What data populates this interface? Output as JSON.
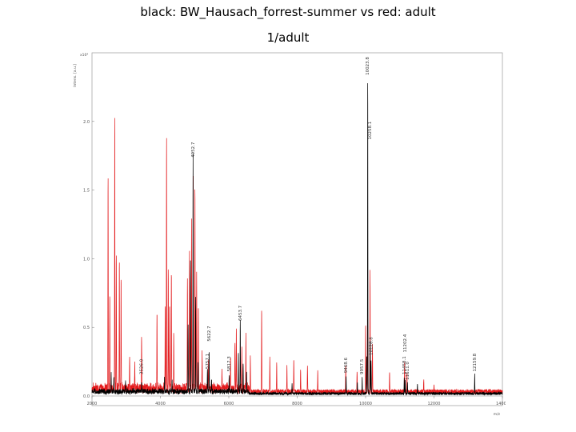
{
  "slide": {
    "title_line1": "black: BW_Hausach_forrest-summer vs  red: adult",
    "title_line2": "1/adult"
  },
  "chart_data": {
    "type": "line",
    "ylabel": "Intens. [a.u.]",
    "y_multiplier": "x10⁴",
    "xlabel": "m/z",
    "xlim": [
      2000,
      14000
    ],
    "ylim": [
      0,
      2.5
    ],
    "x_ticks": [
      2000,
      4000,
      6000,
      8000,
      10000,
      12000,
      14000
    ],
    "x_tick_labels": [
      "2000",
      "4000",
      "6000",
      "8000",
      "10000",
      "12000",
      "14000"
    ],
    "y_ticks": [
      0,
      0.5,
      1.0,
      1.5,
      2.0
    ],
    "y_tick_labels": [
      "0.0",
      "0.5",
      "1.0",
      "1.5",
      "2.0"
    ],
    "series": [
      {
        "color": "#000000",
        "peaks": [
          {
            "mz": 2560,
            "i": 0.13
          },
          {
            "mz": 2640,
            "i": 0.1
          },
          {
            "mz": 2980,
            "i": 0.08
          },
          {
            "mz": 3450,
            "i": 0.07
          },
          {
            "mz": 4120,
            "i": 0.11
          },
          {
            "mz": 4340,
            "i": 0.09
          },
          {
            "mz": 4810,
            "i": 0.5
          },
          {
            "mz": 4880,
            "i": 0.95
          },
          {
            "mz": 4955,
            "i": 1.72
          },
          {
            "mz": 5030,
            "i": 0.7
          },
          {
            "mz": 5100,
            "i": 0.22
          },
          {
            "mz": 5375,
            "i": 0.16
          },
          {
            "mz": 5425,
            "i": 0.3
          },
          {
            "mz": 5495,
            "i": 0.09
          },
          {
            "mz": 6010,
            "i": 0.12
          },
          {
            "mz": 6280,
            "i": 0.28
          },
          {
            "mz": 6335,
            "i": 0.53
          },
          {
            "mz": 6420,
            "i": 0.22
          },
          {
            "mz": 6520,
            "i": 0.14
          },
          {
            "mz": 7850,
            "i": 0.08
          },
          {
            "mz": 9430,
            "i": 0.13
          },
          {
            "mz": 9760,
            "i": 0.08
          },
          {
            "mz": 9900,
            "i": 0.12
          },
          {
            "mz": 10032,
            "i": 0.28
          },
          {
            "mz": 10062,
            "i": 2.3
          },
          {
            "mz": 10134,
            "i": 0.4
          },
          {
            "mz": 10160,
            "i": 0.25
          },
          {
            "mz": 11130,
            "i": 0.12
          },
          {
            "mz": 11160,
            "i": 0.1
          },
          {
            "mz": 11225,
            "i": 0.08
          },
          {
            "mz": 11515,
            "i": 0.07
          },
          {
            "mz": 13190,
            "i": 0.14
          }
        ]
      },
      {
        "color": "#e31a1c",
        "peaks": [
          {
            "mz": 2470,
            "i": 1.57
          },
          {
            "mz": 2520,
            "i": 0.7
          },
          {
            "mz": 2665,
            "i": 2.0
          },
          {
            "mz": 2710,
            "i": 1.0
          },
          {
            "mz": 2800,
            "i": 0.96
          },
          {
            "mz": 2850,
            "i": 0.8
          },
          {
            "mz": 3100,
            "i": 0.25
          },
          {
            "mz": 3250,
            "i": 0.18
          },
          {
            "mz": 3450,
            "i": 0.4
          },
          {
            "mz": 3900,
            "i": 0.55
          },
          {
            "mz": 4140,
            "i": 0.6
          },
          {
            "mz": 4180,
            "i": 1.82
          },
          {
            "mz": 4230,
            "i": 0.9
          },
          {
            "mz": 4270,
            "i": 0.6
          },
          {
            "mz": 4320,
            "i": 0.85
          },
          {
            "mz": 4390,
            "i": 0.4
          },
          {
            "mz": 4790,
            "i": 0.8
          },
          {
            "mz": 4850,
            "i": 1.0
          },
          {
            "mz": 4910,
            "i": 1.2
          },
          {
            "mz": 4960,
            "i": 1.55
          },
          {
            "mz": 5010,
            "i": 1.5
          },
          {
            "mz": 5060,
            "i": 0.85
          },
          {
            "mz": 5110,
            "i": 0.6
          },
          {
            "mz": 5220,
            "i": 0.28
          },
          {
            "mz": 5400,
            "i": 0.2
          },
          {
            "mz": 5800,
            "i": 0.12
          },
          {
            "mz": 6050,
            "i": 0.22
          },
          {
            "mz": 6180,
            "i": 0.35
          },
          {
            "mz": 6220,
            "i": 0.45
          },
          {
            "mz": 6380,
            "i": 0.3
          },
          {
            "mz": 6500,
            "i": 0.38
          },
          {
            "mz": 6630,
            "i": 0.26
          },
          {
            "mz": 6960,
            "i": 0.6
          },
          {
            "mz": 7200,
            "i": 0.25
          },
          {
            "mz": 7400,
            "i": 0.2
          },
          {
            "mz": 7700,
            "i": 0.18
          },
          {
            "mz": 7900,
            "i": 0.24
          },
          {
            "mz": 8100,
            "i": 0.16
          },
          {
            "mz": 8300,
            "i": 0.2
          },
          {
            "mz": 8600,
            "i": 0.15
          },
          {
            "mz": 9420,
            "i": 0.2
          },
          {
            "mz": 9750,
            "i": 0.16
          },
          {
            "mz": 10000,
            "i": 0.5
          },
          {
            "mz": 10060,
            "i": 0.6
          },
          {
            "mz": 10130,
            "i": 0.9
          },
          {
            "mz": 10200,
            "i": 0.35
          },
          {
            "mz": 10700,
            "i": 0.15
          },
          {
            "mz": 11140,
            "i": 0.22
          },
          {
            "mz": 11210,
            "i": 0.15
          },
          {
            "mz": 11700,
            "i": 0.08
          },
          {
            "mz": 12000,
            "i": 0.06
          }
        ]
      }
    ],
    "annotations": [
      {
        "text": "10023.8",
        "x": 10062,
        "y": 2.32
      },
      {
        "text": "10258.1",
        "x": 10134,
        "y": 1.85
      },
      {
        "text": "4952.7",
        "x": 4955,
        "y": 1.72
      },
      {
        "text": "5622.7",
        "x": 5425,
        "y": 0.38
      },
      {
        "text": "3526.0",
        "x": 3450,
        "y": 0.14
      },
      {
        "text": "5757.1",
        "x": 5375,
        "y": 0.18
      },
      {
        "text": "5817.3",
        "x": 6010,
        "y": 0.16
      },
      {
        "text": "6453.7",
        "x": 6335,
        "y": 0.53
      },
      {
        "text": "9468.6",
        "x": 9430,
        "y": 0.15
      },
      {
        "text": "9957.5",
        "x": 9900,
        "y": 0.14
      },
      {
        "text": "10128.8",
        "x": 10160,
        "y": 0.28
      },
      {
        "text": "11202.4",
        "x": 11160,
        "y": 0.3
      },
      {
        "text": "11458.1",
        "x": 11130,
        "y": 0.14
      },
      {
        "text": "11611.0",
        "x": 11225,
        "y": 0.1
      },
      {
        "text": "12159.8",
        "x": 13190,
        "y": 0.16
      }
    ]
  }
}
